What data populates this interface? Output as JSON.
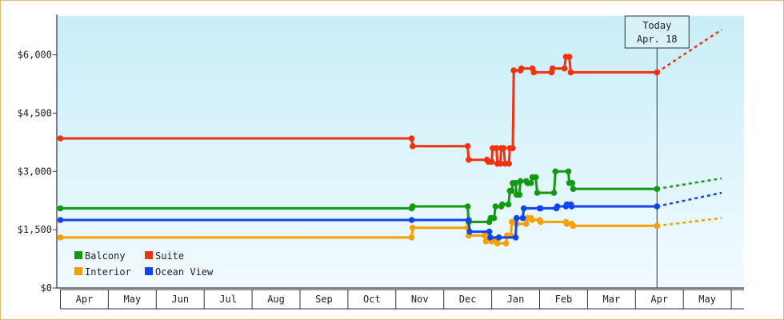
{
  "chart_data": {
    "type": "line",
    "title": "",
    "xlabel": "",
    "ylabel": "",
    "ylim": [
      0,
      7000
    ],
    "y_ticks": [
      {
        "value": 0,
        "label": "$0"
      },
      {
        "value": 1500,
        "label": "$1,500"
      },
      {
        "value": 3000,
        "label": "$3,000"
      },
      {
        "value": 4500,
        "label": "$4,500"
      },
      {
        "value": 6000,
        "label": "$6,000"
      }
    ],
    "month_labels": [
      "Apr",
      "May",
      "Jun",
      "Jul",
      "Aug",
      "Sep",
      "Oct",
      "Nov",
      "Dec",
      "Jan",
      "Feb",
      "Mar",
      "Apr",
      "May"
    ],
    "today": {
      "label": "Today",
      "date_label": "Apr. 18",
      "x": 12.45
    },
    "grid": false,
    "legend_position": "bottom-left",
    "colors": {
      "background_top": "#c8eef8",
      "background_bottom": "#f2fbff",
      "frame": "#e8b878"
    },
    "series": [
      {
        "name": "Balcony",
        "color": "#119911",
        "points": [
          [
            0,
            2050
          ],
          [
            7.33,
            2050
          ],
          [
            7.35,
            2100
          ],
          [
            8.5,
            2100
          ],
          [
            8.52,
            1700
          ],
          [
            8.95,
            1700
          ],
          [
            8.98,
            1800
          ],
          [
            9.05,
            1800
          ],
          [
            9.08,
            2100
          ],
          [
            9.2,
            2100
          ],
          [
            9.22,
            2150
          ],
          [
            9.35,
            2150
          ],
          [
            9.38,
            2500
          ],
          [
            9.42,
            2500
          ],
          [
            9.44,
            2700
          ],
          [
            9.5,
            2700
          ],
          [
            9.52,
            2400
          ],
          [
            9.58,
            2400
          ],
          [
            9.6,
            2750
          ],
          [
            9.72,
            2750
          ],
          [
            9.75,
            2700
          ],
          [
            9.82,
            2700
          ],
          [
            9.85,
            2850
          ],
          [
            9.92,
            2850
          ],
          [
            9.95,
            2450
          ],
          [
            10.3,
            2450
          ],
          [
            10.33,
            3000
          ],
          [
            10.6,
            3000
          ],
          [
            10.62,
            2700
          ],
          [
            10.68,
            2700
          ],
          [
            10.7,
            2550
          ],
          [
            12.45,
            2550
          ]
        ],
        "forecast": [
          [
            12.45,
            2550
          ],
          [
            13.8,
            2820
          ]
        ]
      },
      {
        "name": "Suite",
        "color": "#ee3311",
        "points": [
          [
            0,
            3850
          ],
          [
            7.33,
            3850
          ],
          [
            7.35,
            3650
          ],
          [
            8.5,
            3650
          ],
          [
            8.52,
            3300
          ],
          [
            8.9,
            3300
          ],
          [
            8.93,
            3250
          ],
          [
            9.0,
            3250
          ],
          [
            9.02,
            3600
          ],
          [
            9.1,
            3600
          ],
          [
            9.12,
            3200
          ],
          [
            9.18,
            3200
          ],
          [
            9.2,
            3600
          ],
          [
            9.25,
            3600
          ],
          [
            9.28,
            3200
          ],
          [
            9.36,
            3200
          ],
          [
            9.38,
            3600
          ],
          [
            9.44,
            3600
          ],
          [
            9.46,
            5600
          ],
          [
            9.6,
            5600
          ],
          [
            9.62,
            5650
          ],
          [
            9.85,
            5650
          ],
          [
            9.88,
            5550
          ],
          [
            10.25,
            5550
          ],
          [
            10.27,
            5650
          ],
          [
            10.52,
            5650
          ],
          [
            10.55,
            5950
          ],
          [
            10.62,
            5950
          ],
          [
            10.65,
            5550
          ],
          [
            12.45,
            5550
          ]
        ],
        "forecast": [
          [
            12.45,
            5550
          ],
          [
            13.8,
            6650
          ]
        ]
      },
      {
        "name": "Interior",
        "color": "#f5a000",
        "points": [
          [
            0,
            1300
          ],
          [
            7.33,
            1300
          ],
          [
            7.35,
            1550
          ],
          [
            8.5,
            1550
          ],
          [
            8.52,
            1350
          ],
          [
            8.85,
            1350
          ],
          [
            8.88,
            1200
          ],
          [
            9.0,
            1200
          ],
          [
            9.02,
            1250
          ],
          [
            9.1,
            1250
          ],
          [
            9.12,
            1150
          ],
          [
            9.3,
            1150
          ],
          [
            9.32,
            1350
          ],
          [
            9.4,
            1350
          ],
          [
            9.42,
            1700
          ],
          [
            9.5,
            1700
          ],
          [
            9.52,
            1650
          ],
          [
            9.72,
            1650
          ],
          [
            9.75,
            1800
          ],
          [
            9.82,
            1800
          ],
          [
            9.85,
            1750
          ],
          [
            10.0,
            1750
          ],
          [
            10.02,
            1700
          ],
          [
            10.55,
            1700
          ],
          [
            10.57,
            1650
          ],
          [
            10.67,
            1650
          ],
          [
            10.7,
            1600
          ],
          [
            12.45,
            1600
          ]
        ],
        "forecast": [
          [
            12.45,
            1600
          ],
          [
            13.8,
            1800
          ]
        ]
      },
      {
        "name": "Ocean View",
        "color": "#1144ee",
        "points": [
          [
            0,
            1750
          ],
          [
            7.33,
            1750
          ],
          [
            8.52,
            1750
          ],
          [
            8.54,
            1450
          ],
          [
            8.95,
            1450
          ],
          [
            8.97,
            1300
          ],
          [
            9.15,
            1300
          ],
          [
            9.5,
            1300
          ],
          [
            9.52,
            1800
          ],
          [
            9.65,
            1800
          ],
          [
            9.67,
            2050
          ],
          [
            10.0,
            2050
          ],
          [
            10.02,
            2050
          ],
          [
            10.35,
            2050
          ],
          [
            10.37,
            2100
          ],
          [
            10.55,
            2100
          ],
          [
            10.57,
            2150
          ],
          [
            10.65,
            2150
          ],
          [
            10.67,
            2100
          ],
          [
            12.45,
            2100
          ]
        ],
        "forecast": [
          [
            12.45,
            2100
          ],
          [
            13.8,
            2450
          ]
        ]
      }
    ]
  }
}
